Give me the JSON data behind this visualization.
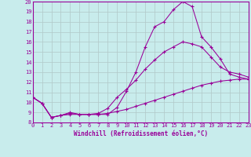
{
  "title": "",
  "xlabel": "Windchill (Refroidissement éolien,°C)",
  "ylabel": "",
  "bg_color": "#c8ecec",
  "line_color": "#990099",
  "grid_color": "#b0c8c8",
  "ylim": [
    8,
    20
  ],
  "xlim": [
    0,
    23
  ],
  "yticks": [
    8,
    9,
    10,
    11,
    12,
    13,
    14,
    15,
    16,
    17,
    18,
    19,
    20
  ],
  "xticks": [
    0,
    1,
    2,
    3,
    4,
    5,
    6,
    7,
    8,
    9,
    10,
    11,
    12,
    13,
    14,
    15,
    16,
    17,
    18,
    19,
    20,
    21,
    22,
    23
  ],
  "line1_x": [
    0,
    1,
    2,
    3,
    4,
    5,
    6,
    7,
    8,
    9,
    10,
    11,
    12,
    13,
    14,
    15,
    16,
    17,
    18,
    19,
    20,
    21,
    22,
    23
  ],
  "line1_y": [
    10.5,
    9.9,
    8.5,
    8.7,
    9.0,
    8.8,
    8.8,
    8.8,
    8.8,
    9.5,
    11.1,
    13.0,
    15.5,
    17.5,
    18.0,
    19.2,
    20.0,
    19.5,
    16.5,
    15.5,
    14.3,
    12.8,
    12.5,
    12.3
  ],
  "line2_x": [
    0,
    1,
    2,
    3,
    4,
    5,
    6,
    7,
    8,
    9,
    10,
    11,
    12,
    13,
    14,
    15,
    16,
    17,
    18,
    19,
    20,
    21,
    22,
    23
  ],
  "line2_y": [
    10.5,
    9.9,
    8.5,
    8.7,
    8.9,
    8.8,
    8.8,
    8.9,
    9.4,
    10.5,
    11.3,
    12.2,
    13.3,
    14.2,
    15.0,
    15.5,
    16.0,
    15.8,
    15.5,
    14.5,
    13.5,
    13.0,
    12.8,
    12.5
  ],
  "line3_x": [
    0,
    1,
    2,
    3,
    4,
    5,
    6,
    7,
    8,
    9,
    10,
    11,
    12,
    13,
    14,
    15,
    16,
    17,
    18,
    19,
    20,
    21,
    22,
    23
  ],
  "line3_y": [
    10.5,
    9.9,
    8.5,
    8.7,
    8.8,
    8.8,
    8.8,
    8.8,
    8.9,
    9.1,
    9.3,
    9.6,
    9.9,
    10.2,
    10.5,
    10.8,
    11.1,
    11.4,
    11.7,
    11.9,
    12.1,
    12.2,
    12.3,
    12.3
  ]
}
